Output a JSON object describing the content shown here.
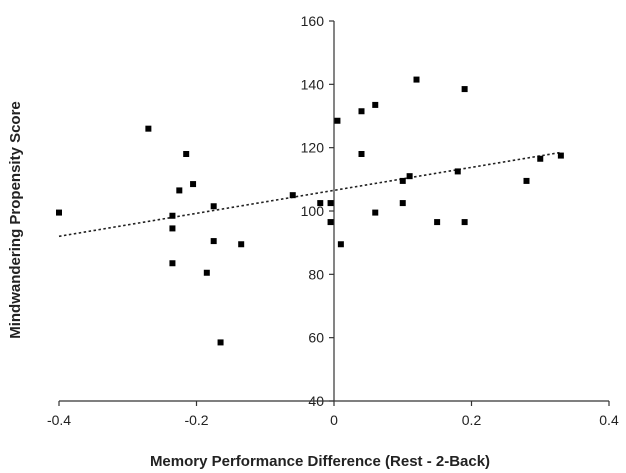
{
  "chart_data": {
    "type": "scatter",
    "title": "",
    "xlabel": "Memory Performance Difference (Rest - 2-Back)",
    "ylabel": "Mindwandering Propensity Score",
    "xlim": [
      -0.4,
      0.4
    ],
    "ylim": [
      40,
      160
    ],
    "x_ticks": [
      "-0.4",
      "-0.2",
      "0",
      "0.2",
      "0.4"
    ],
    "x_tick_values": [
      -0.4,
      -0.2,
      0,
      0.2,
      0.4
    ],
    "y_ticks": [
      "40",
      "60",
      "80",
      "100",
      "120",
      "140",
      "160"
    ],
    "y_tick_values": [
      40,
      60,
      80,
      100,
      120,
      140,
      160
    ],
    "grid": false,
    "marker": "square",
    "marker_color": "#000000",
    "trendline": {
      "style": "dotted",
      "x": [
        -0.4,
        0.33
      ],
      "y": [
        92,
        118.5
      ]
    },
    "points": [
      [
        -0.4,
        99.5
      ],
      [
        -0.27,
        126
      ],
      [
        -0.235,
        98.5
      ],
      [
        -0.235,
        94.5
      ],
      [
        -0.235,
        83.5
      ],
      [
        -0.225,
        106.5
      ],
      [
        -0.215,
        118
      ],
      [
        -0.205,
        108.5
      ],
      [
        -0.185,
        80.5
      ],
      [
        -0.175,
        101.5
      ],
      [
        -0.175,
        90.5
      ],
      [
        -0.165,
        58.5
      ],
      [
        -0.135,
        89.5
      ],
      [
        -0.06,
        105
      ],
      [
        -0.02,
        102.5
      ],
      [
        -0.005,
        102.5
      ],
      [
        -0.005,
        96.5
      ],
      [
        0.005,
        128.5
      ],
      [
        0.01,
        89.5
      ],
      [
        0.04,
        131.5
      ],
      [
        0.04,
        118
      ],
      [
        0.06,
        133.5
      ],
      [
        0.06,
        99.5
      ],
      [
        0.1,
        109.5
      ],
      [
        0.1,
        102.5
      ],
      [
        0.11,
        111
      ],
      [
        0.12,
        141.5
      ],
      [
        0.15,
        96.5
      ],
      [
        0.18,
        112.5
      ],
      [
        0.19,
        138.5
      ],
      [
        0.19,
        96.5
      ],
      [
        0.28,
        109.5
      ],
      [
        0.3,
        116.5
      ],
      [
        0.33,
        117.5
      ]
    ]
  }
}
